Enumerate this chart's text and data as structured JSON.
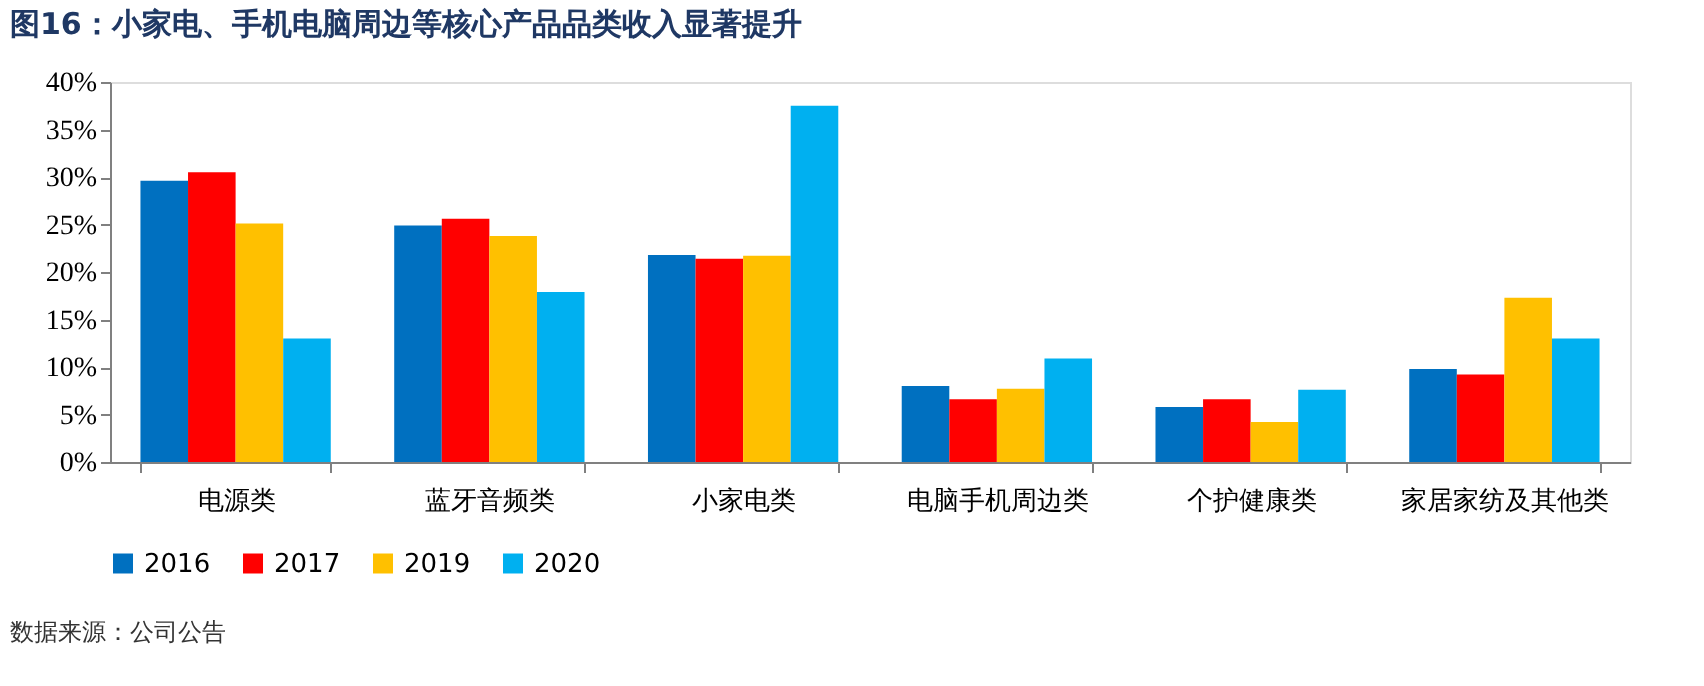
{
  "chart_data": {
    "type": "bar",
    "title": "图16：小家电、手机电脑周边等核心产品品类收入显著提升",
    "categories": [
      "电源类",
      "蓝牙音频类",
      "小家电类",
      "电脑手机周边类",
      "个护健康类",
      "家居家纺及其他类"
    ],
    "series": [
      {
        "name": "2016",
        "color": "#0070c0",
        "values": [
          29.6,
          24.9,
          21.8,
          8.0,
          5.8,
          9.8
        ]
      },
      {
        "name": "2017",
        "color": "#ff0000",
        "values": [
          30.5,
          25.6,
          21.4,
          6.6,
          6.6,
          9.2
        ]
      },
      {
        "name": "2019",
        "color": "#ffc000",
        "values": [
          25.1,
          23.8,
          21.7,
          7.7,
          4.2,
          17.3
        ]
      },
      {
        "name": "2020",
        "color": "#00b0f0",
        "values": [
          13.0,
          17.9,
          37.5,
          10.9,
          7.6,
          13.0
        ]
      }
    ],
    "ylim": [
      0,
      40
    ],
    "yticks": [
      {
        "value": 0,
        "label": "0%"
      },
      {
        "value": 5,
        "label": "5%"
      },
      {
        "value": 10,
        "label": "10%"
      },
      {
        "value": 15,
        "label": "15%"
      },
      {
        "value": 20,
        "label": "20%"
      },
      {
        "value": 25,
        "label": "25%"
      },
      {
        "value": 30,
        "label": "30%"
      },
      {
        "value": 35,
        "label": "35%"
      },
      {
        "value": 40,
        "label": "40%"
      }
    ],
    "grid": false,
    "legend": "bottom",
    "annotations": [
      "数据来源：公司公告"
    ]
  }
}
